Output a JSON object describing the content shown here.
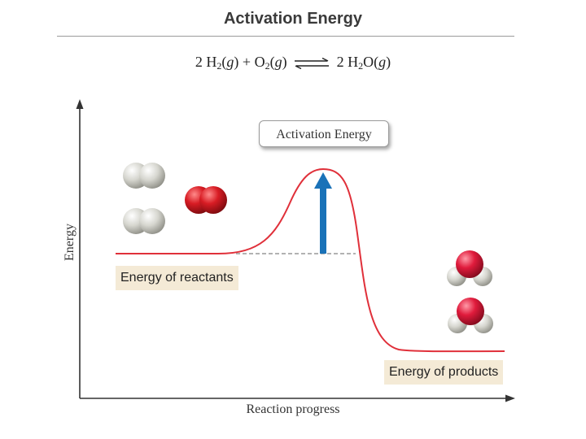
{
  "slide": {
    "title": "Activation Energy"
  },
  "equation": {
    "coef1": "2",
    "h": "H",
    "h_sub": "2",
    "state_g1": "g",
    "plus": "+",
    "o": "O",
    "o_sub": "2",
    "state_g2": "g",
    "coef2": "2",
    "h2": "H",
    "h2_sub": "2",
    "o2": "O",
    "state_g3": "g"
  },
  "diagram": {
    "callout": "Activation Energy",
    "reactants_label": "Energy of reactants",
    "products_label": "Energy of products",
    "xlabel": "Reaction progress",
    "ylabel": "Energy",
    "curve_color": "#e0303a",
    "arrow_color": "#1a72b8",
    "molecules": {
      "hydrogen_color": "#c9c9c2",
      "oxygen_color": "#d81c24",
      "water_oxygen_color": "#e01b3c"
    }
  }
}
